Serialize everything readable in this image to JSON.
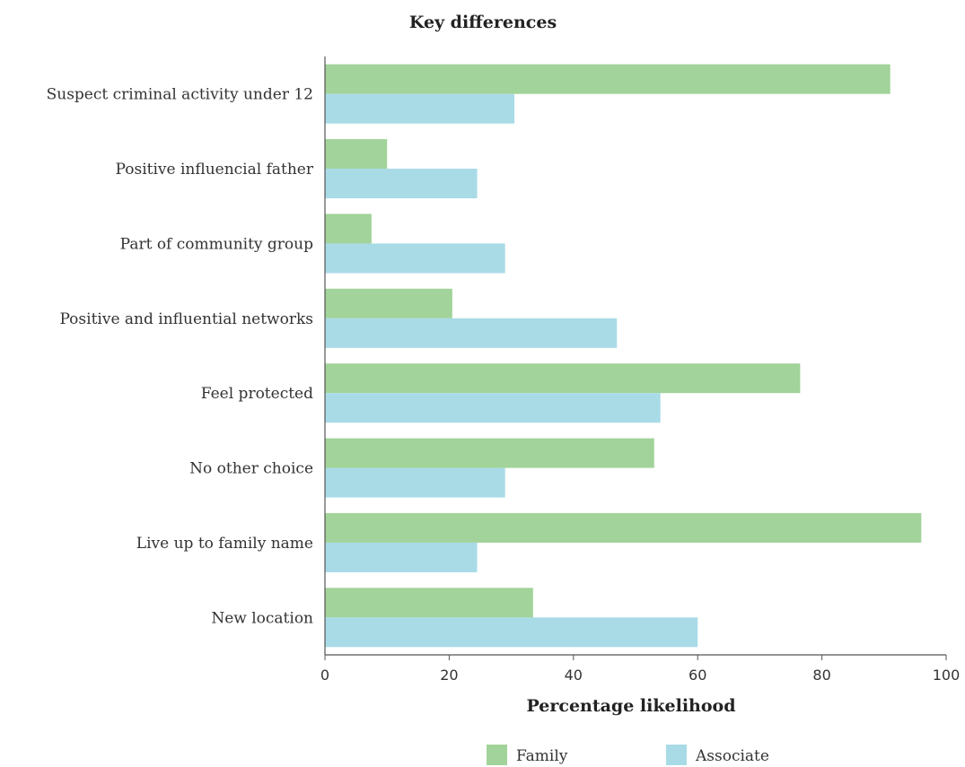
{
  "chart_data": {
    "type": "bar",
    "orientation": "horizontal",
    "title": "Key differences",
    "xlabel": "Percentage likelihood",
    "ylabel": "",
    "xlim": [
      0,
      100
    ],
    "x_ticks": [
      "0",
      "20",
      "40",
      "60",
      "80",
      "100"
    ],
    "categories": [
      "Suspect criminal activity under 12",
      "Positive influencial father",
      "Part of community group",
      "Positive and influential networks",
      "Feel protected",
      "No other choice",
      "Live up to family name",
      "New location"
    ],
    "series": [
      {
        "name": "Family",
        "color": "#a2d39a",
        "values": [
          91,
          10,
          7.5,
          20.5,
          76.5,
          53,
          96,
          33.5
        ]
      },
      {
        "name": "Associate",
        "color": "#a8dbe6",
        "values": [
          30.5,
          24.5,
          29,
          47,
          54,
          29,
          24.5,
          60
        ]
      }
    ],
    "grid": false,
    "legend_position": "bottom"
  }
}
